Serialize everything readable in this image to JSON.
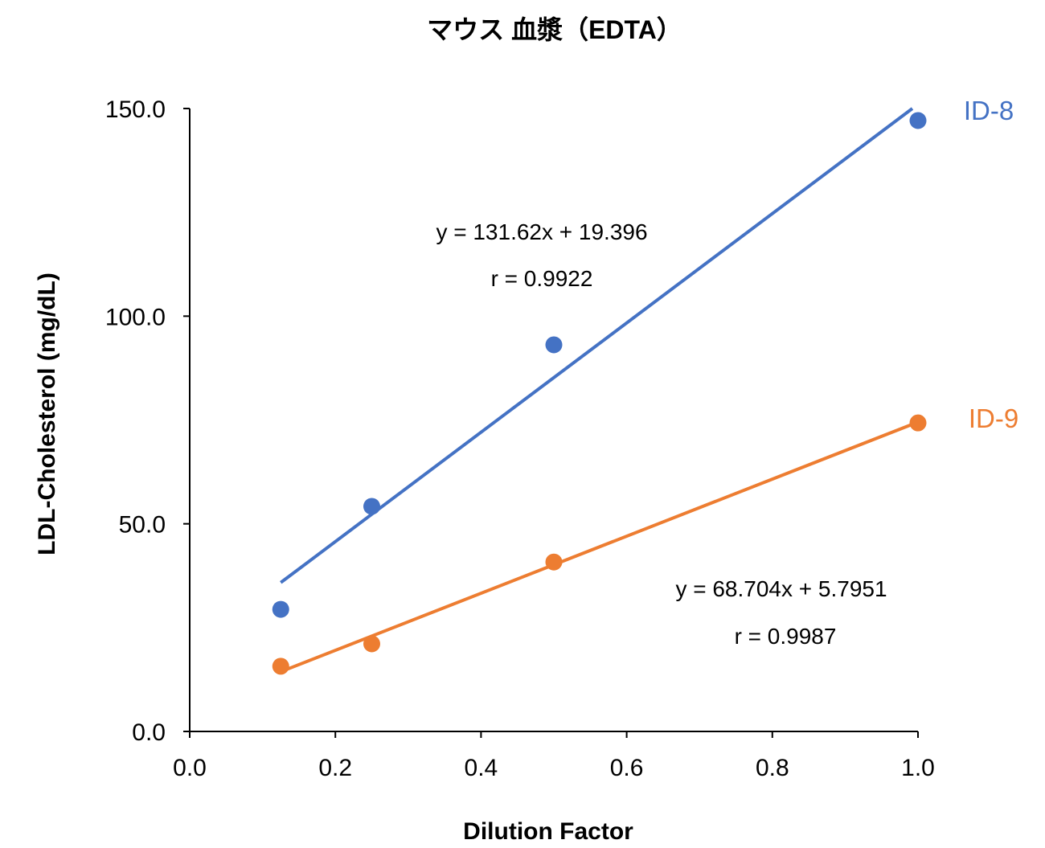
{
  "chart_data": {
    "type": "scatter",
    "title": "マウス 血漿（EDTA）",
    "xlabel": "Dilution Factor",
    "ylabel": "LDL-Cholesterol (mg/dL)",
    "xlim": [
      0,
      1.0
    ],
    "ylim": [
      0,
      150
    ],
    "x_ticks": [
      "0.0",
      "0.2",
      "0.4",
      "0.6",
      "0.8",
      "1.0"
    ],
    "y_ticks": [
      "0.0",
      "50.0",
      "100.0",
      "150.0"
    ],
    "grid": false,
    "legend": "none",
    "series": [
      {
        "name": "ID-8",
        "color": "#4472C4",
        "x": [
          0.125,
          0.25,
          0.5,
          1.0
        ],
        "y": [
          29.4,
          54.2,
          93.1,
          147.1
        ],
        "trendline": {
          "slope": 131.62,
          "intercept": 19.396,
          "x_range": [
            0.125,
            1.0
          ]
        },
        "equation": "y = 131.62x + 19.396",
        "r_label": "r = 0.9922"
      },
      {
        "name": "ID-9",
        "color": "#ED7D31",
        "x": [
          0.125,
          0.25,
          0.5,
          1.0
        ],
        "y": [
          15.7,
          21.1,
          40.8,
          74.3
        ],
        "trendline": {
          "slope": 68.704,
          "intercept": 5.7951,
          "x_range": [
            0.125,
            1.0
          ]
        },
        "equation": "y = 68.704x + 5.7951",
        "r_label": "r = 0.9987"
      }
    ]
  }
}
